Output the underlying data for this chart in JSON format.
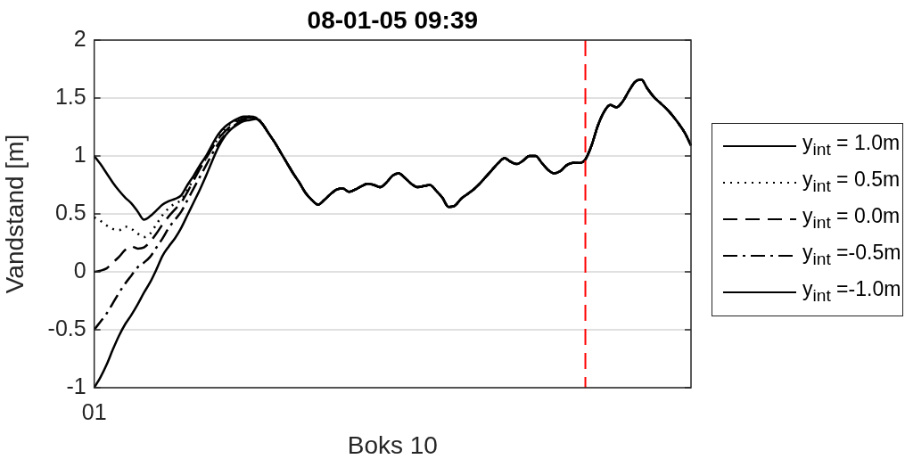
{
  "chart_data": {
    "type": "line",
    "title": "08-01-05 09:39",
    "xlabel": "Boks 10",
    "ylabel": "Vandstand [m]",
    "categories": [
      "01",
      null,
      null,
      null,
      null,
      null,
      null,
      null,
      null,
      null,
      null,
      null,
      null,
      null,
      null,
      null,
      null,
      null,
      null,
      null,
      null,
      null,
      null,
      null,
      null,
      null,
      null,
      null,
      null,
      null,
      null,
      null,
      null,
      null,
      null,
      null,
      null,
      null,
      null,
      null,
      null,
      null,
      null,
      null,
      null,
      null,
      null,
      null,
      null,
      null,
      null,
      null,
      null,
      null,
      null,
      null,
      null,
      null,
      null,
      null,
      null,
      null,
      null,
      null,
      null,
      null,
      null,
      null,
      null,
      null,
      null,
      null,
      null,
      null,
      null,
      null,
      null,
      null,
      null,
      null,
      null,
      null,
      null,
      null,
      null,
      null,
      null,
      null,
      null,
      null,
      null,
      null,
      null,
      null,
      null,
      null,
      null
    ],
    "series": [
      {
        "name": "y$_{int}$ = 1.0m",
        "color": "#000000",
        "line_style": "solid",
        "values": [
          1.0,
          0.93,
          0.85,
          0.77,
          0.7,
          0.64,
          0.59,
          0.52,
          0.45,
          0.48,
          0.53,
          0.58,
          0.61,
          0.63,
          0.66,
          0.75,
          0.83,
          0.92,
          1.0,
          1.1,
          1.19,
          1.25,
          1.29,
          1.32,
          1.34,
          1.34,
          1.33,
          1.28,
          1.2,
          1.12,
          1.03,
          0.94,
          0.85,
          0.77,
          0.68,
          0.62,
          0.58,
          0.62,
          0.67,
          0.71,
          0.72,
          0.69,
          0.71,
          0.74,
          0.76,
          0.75,
          0.73,
          0.77,
          0.83,
          0.85,
          0.81,
          0.76,
          0.73,
          0.74,
          0.75,
          0.7,
          0.64,
          0.56,
          0.57,
          0.63,
          0.67,
          0.71,
          0.76,
          0.82,
          0.88,
          0.94,
          0.98,
          0.95,
          0.93,
          0.96,
          1.0,
          1.0,
          0.94,
          0.88,
          0.85,
          0.87,
          0.92,
          0.94,
          0.94,
          0.97,
          1.09,
          1.26,
          1.38,
          1.44,
          1.42,
          1.47,
          1.56,
          1.64,
          1.66,
          1.58,
          1.51,
          1.46,
          1.41,
          1.35,
          1.28,
          1.2,
          1.09
        ]
      },
      {
        "name": "y$_{int}$ = 0.5m",
        "color": "#000000",
        "line_style": "dotted",
        "values": [
          0.47,
          0.44,
          0.4,
          0.37,
          0.36,
          0.39,
          0.37,
          0.33,
          0.3,
          0.33,
          0.41,
          0.49,
          0.55,
          0.59,
          0.62,
          0.71,
          0.8,
          0.89,
          0.98,
          1.07,
          1.16,
          1.23,
          1.28,
          1.31,
          1.33,
          1.34,
          1.33,
          1.28,
          1.2,
          1.12,
          1.03,
          0.94,
          0.85,
          0.77,
          0.68,
          0.62,
          0.58,
          0.62,
          0.67,
          0.71,
          0.72,
          0.69,
          0.71,
          0.74,
          0.76,
          0.75,
          0.73,
          0.77,
          0.83,
          0.85,
          0.81,
          0.76,
          0.73,
          0.74,
          0.75,
          0.7,
          0.64,
          0.56,
          0.57,
          0.63,
          0.67,
          0.71,
          0.76,
          0.82,
          0.88,
          0.94,
          0.98,
          0.95,
          0.93,
          0.96,
          1.0,
          1.0,
          0.94,
          0.88,
          0.85,
          0.87,
          0.92,
          0.94,
          0.94,
          0.97,
          1.09,
          1.26,
          1.38,
          1.44,
          1.42,
          1.47,
          1.56,
          1.64,
          1.66,
          1.58,
          1.51,
          1.46,
          1.41,
          1.35,
          1.28,
          1.2,
          1.09
        ]
      },
      {
        "name": "y$_{int}$ = 0.0m",
        "color": "#000000",
        "line_style": "dashed",
        "values": [
          0.0,
          0.01,
          0.03,
          0.08,
          0.13,
          0.19,
          0.22,
          0.2,
          0.21,
          0.26,
          0.33,
          0.41,
          0.48,
          0.54,
          0.6,
          0.69,
          0.79,
          0.89,
          0.98,
          1.07,
          1.15,
          1.21,
          1.26,
          1.3,
          1.32,
          1.33,
          1.33,
          1.28,
          1.2,
          1.12,
          1.03,
          0.94,
          0.85,
          0.77,
          0.68,
          0.62,
          0.58,
          0.62,
          0.67,
          0.71,
          0.72,
          0.69,
          0.71,
          0.74,
          0.76,
          0.75,
          0.73,
          0.77,
          0.83,
          0.85,
          0.81,
          0.76,
          0.73,
          0.74,
          0.75,
          0.7,
          0.64,
          0.56,
          0.57,
          0.63,
          0.67,
          0.71,
          0.76,
          0.82,
          0.88,
          0.94,
          0.98,
          0.95,
          0.93,
          0.96,
          1.0,
          1.0,
          0.94,
          0.88,
          0.85,
          0.87,
          0.92,
          0.94,
          0.94,
          0.97,
          1.09,
          1.26,
          1.38,
          1.44,
          1.42,
          1.47,
          1.56,
          1.64,
          1.66,
          1.58,
          1.51,
          1.46,
          1.41,
          1.35,
          1.28,
          1.2,
          1.09
        ]
      },
      {
        "name": "y$_{int}$ =-0.5m",
        "color": "#000000",
        "line_style": "dashdot",
        "values": [
          -0.5,
          -0.43,
          -0.36,
          -0.27,
          -0.18,
          -0.1,
          -0.03,
          0.04,
          0.08,
          0.13,
          0.21,
          0.29,
          0.38,
          0.45,
          0.52,
          0.62,
          0.72,
          0.82,
          0.92,
          1.02,
          1.11,
          1.18,
          1.24,
          1.28,
          1.31,
          1.32,
          1.33,
          1.28,
          1.2,
          1.12,
          1.03,
          0.94,
          0.85,
          0.77,
          0.68,
          0.62,
          0.58,
          0.62,
          0.67,
          0.71,
          0.72,
          0.69,
          0.71,
          0.74,
          0.76,
          0.75,
          0.73,
          0.77,
          0.83,
          0.85,
          0.81,
          0.76,
          0.73,
          0.74,
          0.75,
          0.7,
          0.64,
          0.56,
          0.57,
          0.63,
          0.67,
          0.71,
          0.76,
          0.82,
          0.88,
          0.94,
          0.98,
          0.95,
          0.93,
          0.96,
          1.0,
          1.0,
          0.94,
          0.88,
          0.85,
          0.87,
          0.92,
          0.94,
          0.94,
          0.97,
          1.09,
          1.26,
          1.38,
          1.44,
          1.42,
          1.47,
          1.56,
          1.64,
          1.66,
          1.58,
          1.51,
          1.46,
          1.41,
          1.35,
          1.28,
          1.2,
          1.09
        ]
      },
      {
        "name": "y$_{int}$ =-1.0m",
        "color": "#000000",
        "line_style": "solid",
        "values": [
          -1.0,
          -0.91,
          -0.8,
          -0.67,
          -0.55,
          -0.45,
          -0.37,
          -0.28,
          -0.18,
          -0.09,
          0.02,
          0.14,
          0.22,
          0.29,
          0.38,
          0.49,
          0.6,
          0.71,
          0.83,
          0.96,
          1.08,
          1.17,
          1.23,
          1.27,
          1.3,
          1.31,
          1.32,
          1.28,
          1.2,
          1.12,
          1.03,
          0.94,
          0.85,
          0.77,
          0.68,
          0.62,
          0.58,
          0.62,
          0.67,
          0.71,
          0.72,
          0.69,
          0.71,
          0.74,
          0.76,
          0.75,
          0.73,
          0.77,
          0.83,
          0.85,
          0.81,
          0.76,
          0.73,
          0.74,
          0.75,
          0.7,
          0.64,
          0.56,
          0.57,
          0.63,
          0.67,
          0.71,
          0.76,
          0.82,
          0.88,
          0.94,
          0.98,
          0.95,
          0.93,
          0.96,
          1.0,
          1.0,
          0.94,
          0.88,
          0.85,
          0.87,
          0.92,
          0.94,
          0.94,
          0.97,
          1.09,
          1.26,
          1.38,
          1.44,
          1.42,
          1.47,
          1.56,
          1.64,
          1.66,
          1.58,
          1.51,
          1.46,
          1.41,
          1.35,
          1.28,
          1.2,
          1.09
        ]
      }
    ],
    "ylim": [
      -1,
      2
    ],
    "yticks": [
      -1,
      -0.5,
      0,
      0.5,
      1,
      1.5,
      2
    ],
    "grid": "y",
    "legend": "right",
    "marker": "none"
  }
}
